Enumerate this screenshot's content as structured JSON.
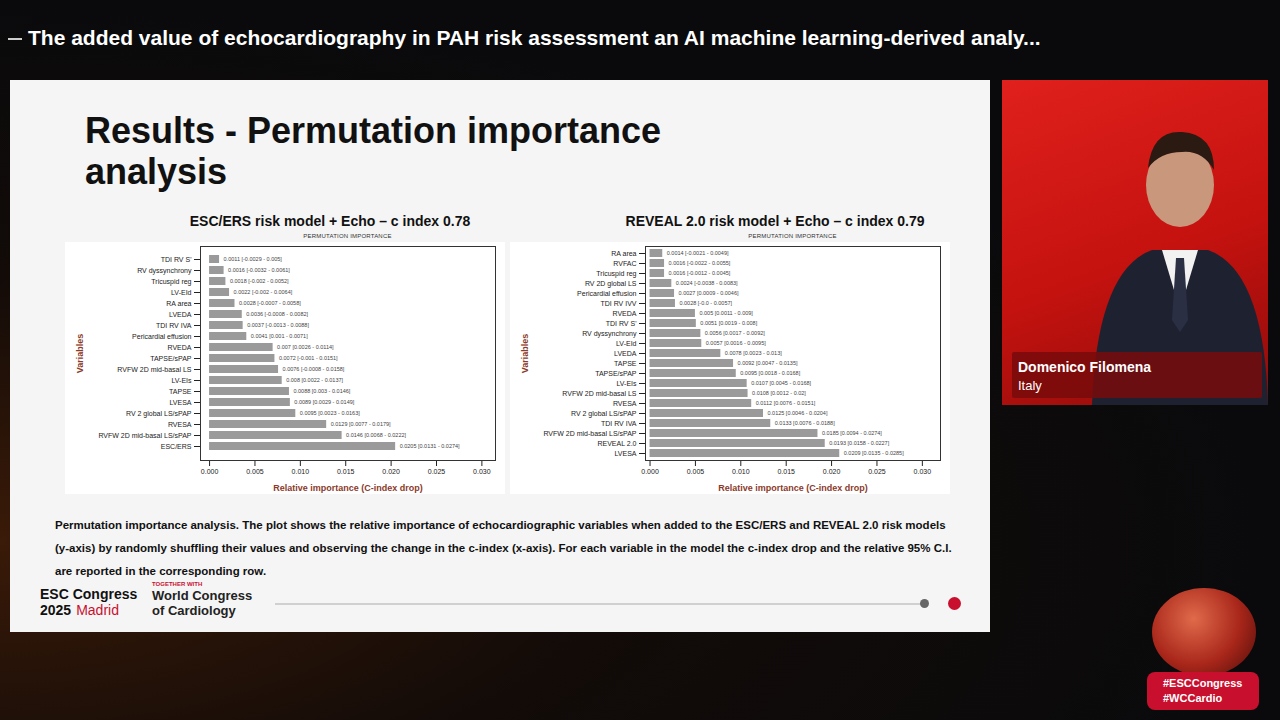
{
  "header": {
    "title": "The added value of echocardiography in PAH risk assessment an AI machine learning-derived analy..."
  },
  "slide": {
    "title": "Results - Permutation importance analysis",
    "caption": "Permutation importance analysis. The plot shows the relative importance of echocardiographic variables when added to the ESC/ERS and REVEAL 2.0 risk models (y-axis) by randomly shuffling their values and observing the change in the c-index (x-axis). For each variable in the model the c-index drop and the relative 95% C.I. are reported in the corresponding row.",
    "footer": {
      "congress": "ESC Congress",
      "year": "2025",
      "city": "Madrid",
      "partner_intro": "TOGETHER WITH",
      "partner": [
        "World Congress",
        "of Cardiology"
      ]
    }
  },
  "speaker": {
    "name": "Domenico Filomena",
    "country": "Italy"
  },
  "hashtags": [
    "#ESCCongress",
    "#WCCardio"
  ],
  "chart_data": [
    {
      "type": "bar",
      "orientation": "horizontal",
      "title": "ESC/ERS risk model + Echo – c index 0.78",
      "subtitle": "PERMUTATION IMPORTANCE",
      "x_label": "Relative importance (C-index drop)",
      "y_label": "Variables",
      "categories": [
        "TDI RV S'",
        "RV dyssynchrony",
        "Tricuspid reg",
        "LV-EId",
        "RA area",
        "LVEDA",
        "TDI RV IVA",
        "Pericardial effusion",
        "RVEDA",
        "TAPSE/sPAP",
        "RVFW 2D mid-basal LS",
        "LV-EIs",
        "TAPSE",
        "LVESA",
        "RV 2 global LS/sPAP",
        "RVESA",
        "RVFW 2D mid-basal LS/sPAP",
        "ESC/ERS"
      ],
      "values": [
        0.0011,
        0.0016,
        0.0018,
        0.0022,
        0.0028,
        0.0036,
        0.0037,
        0.0041,
        0.007,
        0.0072,
        0.0076,
        0.008,
        0.0088,
        0.0089,
        0.0095,
        0.0129,
        0.0146,
        0.0205
      ],
      "value_labels": [
        "0.0011 [-0.0029 - 0.005]",
        "0.0016 [-0.0032 - 0.0061]",
        "0.0018 [-0.002 - 0.0052]",
        "0.0022 [-0.002 - 0.0064]",
        "0.0028 [-0.0007 - 0.0058]",
        "0.0036 [-0.0008 - 0.0082]",
        "0.0037 [-0.0013 - 0.0088]",
        "0.0041 [0.001 - 0.0071]",
        "0.007 [0.0026 - 0.0114]",
        "0.0072 [-0.001 - 0.0151]",
        "0.0076 [-0.0008 - 0.0158]",
        "0.008 [0.0022 - 0.0137]",
        "0.0088 [0.003 - 0.0146]",
        "0.0089 [0.0029 - 0.0149]",
        "0.0095 [0.0023 - 0.0163]",
        "0.0129 [0.0077 - 0.0179]",
        "0.0146 [0.0068 - 0.0222]",
        "0.0205 [0.0131 - 0.0274]"
      ],
      "color": "#9a9a9a",
      "data_labels": true,
      "grid": false,
      "xlim": [
        -0.001,
        0.0315
      ],
      "xticks": [
        {
          "value": 0,
          "label": "0.000"
        },
        {
          "value": 0.005,
          "label": "0.005"
        },
        {
          "value": 0.01,
          "label": "0.010"
        },
        {
          "value": 0.015,
          "label": "0.015"
        },
        {
          "value": 0.02,
          "label": "0.020"
        },
        {
          "value": 0.025,
          "label": "0.025"
        },
        {
          "value": 0.03,
          "label": "0.030"
        }
      ]
    },
    {
      "type": "bar",
      "orientation": "horizontal",
      "title": "REVEAL 2.0 risk model + Echo – c index 0.79",
      "subtitle": "PERMUTATION IMPORTANCE",
      "x_label": "Relative importance (C-index drop)",
      "y_label": "Variables",
      "categories": [
        "RA area",
        "RVFAC",
        "Tricuspid reg",
        "RV 2D global LS",
        "Pericardial effusion",
        "TDI RV IVV",
        "RVEDA",
        "TDI RV S'",
        "RV dyssynchrony",
        "LV-EId",
        "LVEDA",
        "TAPSE",
        "TAPSE/sPAP",
        "LV-EIs",
        "RVFW 2D mid-basal LS",
        "RVESA",
        "RV 2 global LS/sPAP",
        "TDI RV IVA",
        "RVFW 2D mid-basal LS/sPAP",
        "REVEAL 2.0",
        "LVESA"
      ],
      "values": [
        0.0014,
        0.0016,
        0.0016,
        0.0024,
        0.0027,
        0.0028,
        0.005,
        0.0051,
        0.0056,
        0.0057,
        0.0078,
        0.0092,
        0.0095,
        0.0107,
        0.0108,
        0.0112,
        0.0125,
        0.0133,
        0.0185,
        0.0193,
        0.0209
      ],
      "value_labels": [
        "0.0014 [-0.0021 - 0.0049]",
        "0.0016 [-0.0022 - 0.0055]",
        "0.0016 [-0.0012 - 0.0045]",
        "0.0024 [-0.0038 - 0.0083]",
        "0.0027 [0.0009 - 0.0046]",
        "0.0028 [-0.0 - 0.0057]",
        "0.005 [0.0011 - 0.009]",
        "0.0051 [0.0019 - 0.008]",
        "0.0056 [0.0017 - 0.0092]",
        "0.0057 [0.0016 - 0.0095]",
        "0.0078 [0.0023 - 0.013]",
        "0.0092 [0.0047 - 0.0135]",
        "0.0095 [0.0018 - 0.0168]",
        "0.0107 [0.0045 - 0.0168]",
        "0.0108 [0.0012 - 0.02]",
        "0.0112 [0.0076 - 0.0151]",
        "0.0125 [0.0046 - 0.0204]",
        "0.0133 [0.0076 - 0.0188]",
        "0.0185 [0.0094 - 0.0274]",
        "0.0193 [0.0158 - 0.0227]",
        "0.0209 [0.0135 - 0.0285]"
      ],
      "color": "#9a9a9a",
      "data_labels": true,
      "grid": false,
      "xlim": [
        -0.0005,
        0.032
      ],
      "xticks": [
        {
          "value": 0,
          "label": "0.000"
        },
        {
          "value": 0.005,
          "label": "0.005"
        },
        {
          "value": 0.01,
          "label": "0.010"
        },
        {
          "value": 0.015,
          "label": "0.015"
        },
        {
          "value": 0.02,
          "label": "0.020"
        },
        {
          "value": 0.025,
          "label": "0.025"
        },
        {
          "value": 0.03,
          "label": "0.030"
        }
      ]
    }
  ]
}
